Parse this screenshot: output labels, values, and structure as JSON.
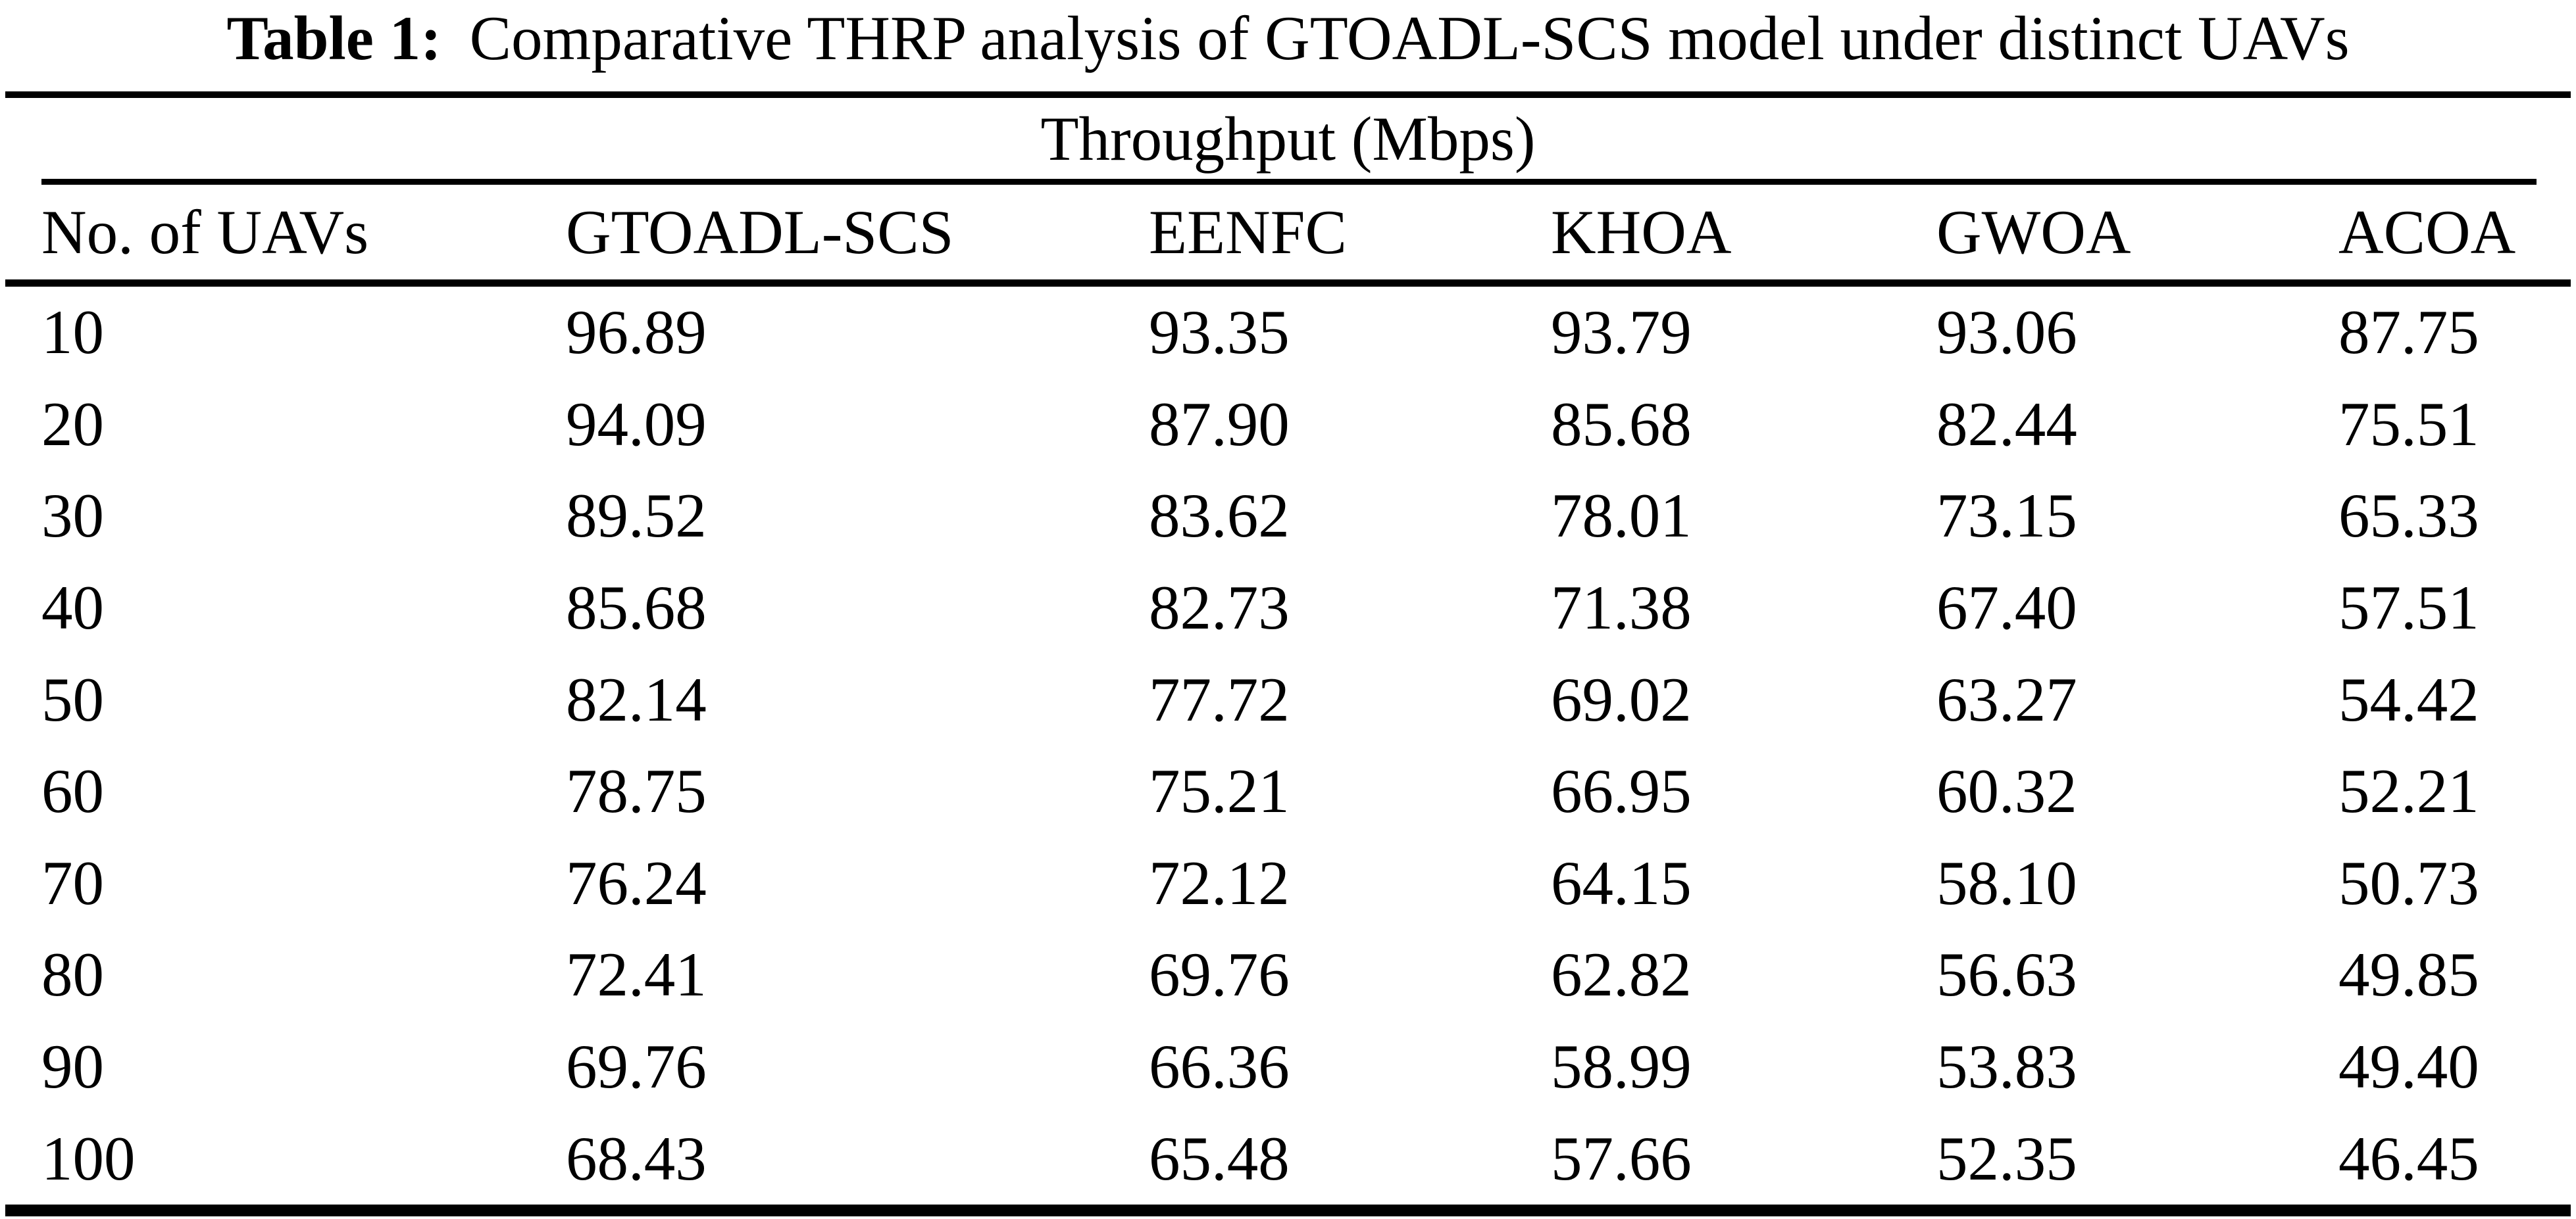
{
  "colors": {
    "background": "#ffffff",
    "text": "#000000",
    "rule": "#000000"
  },
  "caption": {
    "label": "Table 1:",
    "text": "Comparative THRP analysis of GTOADL-SCS model under distinct UAVs"
  },
  "table": {
    "group_header": "Throughput (Mbps)",
    "columns": [
      "No. of UAVs",
      "GTOADL-SCS",
      "EENFC",
      "KHOA",
      "GWOA",
      "ACOA"
    ],
    "rows": [
      [
        "10",
        "96.89",
        "93.35",
        "93.79",
        "93.06",
        "87.75"
      ],
      [
        "20",
        "94.09",
        "87.90",
        "85.68",
        "82.44",
        "75.51"
      ],
      [
        "30",
        "89.52",
        "83.62",
        "78.01",
        "73.15",
        "65.33"
      ],
      [
        "40",
        "85.68",
        "82.73",
        "71.38",
        "67.40",
        "57.51"
      ],
      [
        "50",
        "82.14",
        "77.72",
        "69.02",
        "63.27",
        "54.42"
      ],
      [
        "60",
        "78.75",
        "75.21",
        "66.95",
        "60.32",
        "52.21"
      ],
      [
        "70",
        "76.24",
        "72.12",
        "64.15",
        "58.10",
        "50.73"
      ],
      [
        "80",
        "72.41",
        "69.76",
        "62.82",
        "56.63",
        "49.85"
      ],
      [
        "90",
        "69.76",
        "66.36",
        "58.99",
        "53.83",
        "49.40"
      ],
      [
        "100",
        "68.43",
        "65.48",
        "57.66",
        "52.35",
        "46.45"
      ]
    ]
  }
}
